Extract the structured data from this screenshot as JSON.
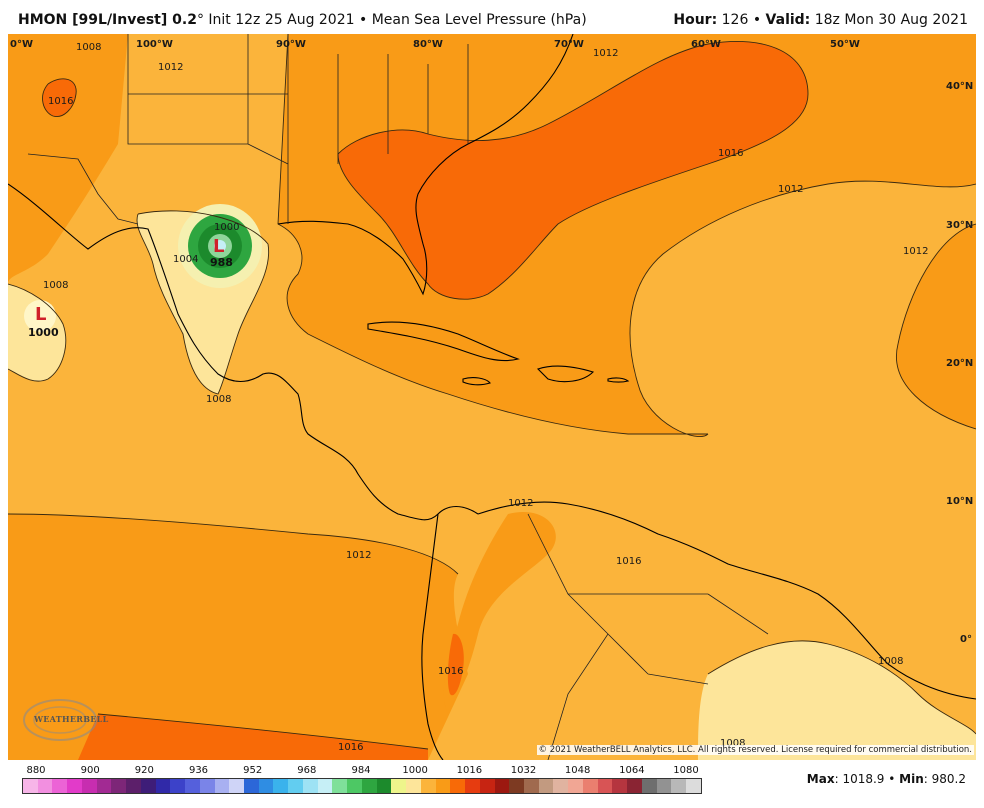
{
  "header": {
    "model": "HMON [99L/Invest] 0.2",
    "degree": "°",
    "init": "Init 12z 25 Aug 2021",
    "bullet": "•",
    "field": "Mean Sea Level Pressure (hPa)",
    "hour_label": "Hour:",
    "hour_value": "126",
    "valid_label": "Valid:",
    "valid_value": "18z Mon 30 Aug 2021"
  },
  "map": {
    "longitude_labels": [
      "0°W",
      "100°W",
      "90°W",
      "80°W",
      "70°W",
      "60°W",
      "50°W"
    ],
    "latitude_labels": [
      "40°N",
      "30°N",
      "20°N",
      "10°N",
      "0°"
    ],
    "isobar_labels": [
      "1008",
      "1012",
      "1016",
      "1004",
      "1000",
      "988",
      "1008",
      "1016",
      "1012",
      "1012",
      "1012",
      "1012",
      "1016",
      "1016",
      "1008",
      "1008",
      "1012",
      "1016",
      "1008"
    ],
    "lows": [
      {
        "symbol": "L",
        "value": "988",
        "color": "#d0202a"
      },
      {
        "symbol": "L",
        "value": "1000",
        "color": "#d0202a"
      }
    ],
    "copyright": "© 2021 WeatherBELL Analytics, LLC. All rights reserved. License required for commercial distribution.",
    "logo_text": "WEATHERBELL",
    "colors": {
      "p1004_1008": "#fde59a",
      "p1008_1012": "#fbb43b",
      "p1012_1016": "#f99b17",
      "p1016_1020": "#f86a07",
      "low_green": "#2ea640",
      "low_green_light": "#8fd59a"
    }
  },
  "colorbar": {
    "labels": [
      "880",
      "900",
      "920",
      "936",
      "952",
      "968",
      "984",
      "1000",
      "1016",
      "1032",
      "1048",
      "1064",
      "1080"
    ],
    "swatches": [
      "#f7b5e8",
      "#f28fe0",
      "#ec63d6",
      "#e23bc9",
      "#c72db0",
      "#a22a93",
      "#7d2678",
      "#5c1f6a",
      "#3e1d78",
      "#3029a8",
      "#3c42c9",
      "#5560dc",
      "#7a84e8",
      "#a8b0f1",
      "#cfd4f7",
      "#2c67d8",
      "#2f8de3",
      "#3ab2ec",
      "#62cdf0",
      "#9de2f4",
      "#c6eff6",
      "#7fe09a",
      "#4dc864",
      "#2ea640",
      "#1c8a2c",
      "#eef58b",
      "#fde59a",
      "#fbb43b",
      "#f99b17",
      "#f86a07",
      "#e63c10",
      "#c72412",
      "#9c1810",
      "#7d3a22",
      "#a06a4e",
      "#c29a80",
      "#e0b3a0",
      "#f1a694",
      "#ea7f6f",
      "#d85455",
      "#b5353f",
      "#8a2433",
      "#6e6e6e",
      "#929292",
      "#b8b8b8",
      "#dcdcdc"
    ]
  },
  "stats": {
    "max_label": "Max",
    "max_value": "1018.9",
    "min_label": "Min",
    "min_value": "980.2"
  }
}
